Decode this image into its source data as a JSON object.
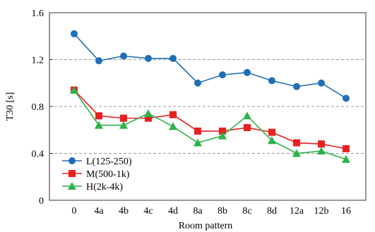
{
  "chart_data": {
    "type": "line",
    "xlabel": "Room pattern",
    "ylabel": "T30 [s]",
    "ylim": [
      0,
      1.6
    ],
    "yticks": [
      "0",
      "0.4",
      "0.8",
      "1.2",
      "1.6"
    ],
    "ytick_values": [
      0,
      0.4,
      0.8,
      1.2,
      1.6
    ],
    "grid": "horizontal dashed",
    "legend_position": "lower-left",
    "categories": [
      "0",
      "4a",
      "4b",
      "4c",
      "4d",
      "8a",
      "8b",
      "8c",
      "8d",
      "12a",
      "12b",
      "16"
    ],
    "series": [
      {
        "name": "L(125-250)",
        "color": "#1f6fb5",
        "marker": "circle",
        "values": [
          1.42,
          1.19,
          1.23,
          1.21,
          1.21,
          1.0,
          1.07,
          1.09,
          1.02,
          0.97,
          1.0,
          0.87
        ]
      },
      {
        "name": "M(500-1k)",
        "color": "#e8201f",
        "marker": "square",
        "values": [
          0.94,
          0.72,
          0.7,
          0.7,
          0.73,
          0.59,
          0.59,
          0.62,
          0.58,
          0.49,
          0.48,
          0.44
        ]
      },
      {
        "name": "H(2k-4k)",
        "color": "#2eb24a",
        "marker": "triangle",
        "values": [
          0.94,
          0.64,
          0.64,
          0.74,
          0.63,
          0.49,
          0.55,
          0.72,
          0.51,
          0.4,
          0.42,
          0.35
        ]
      }
    ]
  }
}
